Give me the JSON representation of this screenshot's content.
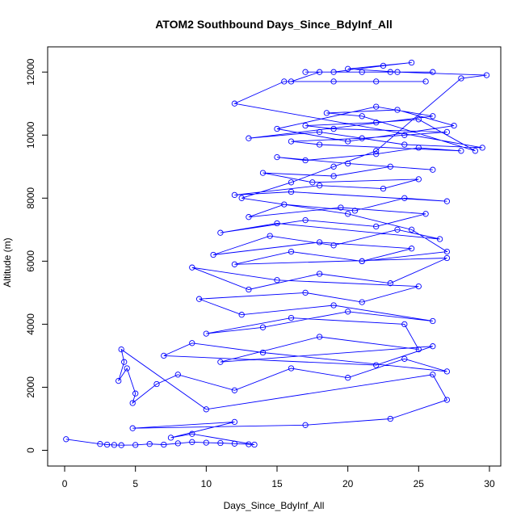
{
  "chart_data": {
    "type": "line",
    "title": "ATOM2 Southbound Days_Since_BdyInf_All",
    "xlabel": "Days_Since_BdyInf_All",
    "ylabel": "Altitude (m)",
    "xlim": [
      -1.2,
      30.8
    ],
    "ylim": [
      -500,
      12800
    ],
    "x_ticks": [
      0,
      5,
      10,
      15,
      20,
      25,
      30
    ],
    "y_ticks": [
      0,
      2000,
      4000,
      6000,
      8000,
      10000,
      12000
    ],
    "grid": false,
    "legend": "none",
    "series": [
      {
        "color": "#0000ff",
        "marker": "open-circle",
        "x": [
          0.1,
          2.5,
          3.0,
          3.5,
          4.0,
          5.0,
          6.0,
          7.0,
          8.0,
          9.0,
          10.0,
          11.0,
          12.0,
          13.0,
          13.4,
          9.0,
          7.5,
          12.0,
          4.8,
          17.0,
          23.0,
          27.0,
          26.0,
          10.0,
          4.0,
          4.2,
          3.8,
          4.4,
          5.0,
          4.8,
          6.5,
          8.0,
          12.0,
          16.0,
          20.0,
          24.0,
          27.0,
          14.0,
          9.0,
          7.0,
          22.0,
          26.0,
          11.0,
          18.0,
          25.0,
          24.0,
          16.0,
          10.0,
          14.0,
          20.0,
          26.0,
          19.0,
          12.5,
          9.5,
          17.0,
          21.0,
          25.0,
          15.0,
          9.0,
          13.0,
          18.0,
          23.0,
          27.0,
          12.0,
          16.0,
          21.0,
          24.5,
          18.0,
          10.5,
          14.5,
          19.0,
          23.5,
          26.5,
          15.0,
          11.0,
          17.0,
          22.0,
          25.5,
          19.5,
          13.0,
          15.5,
          20.5,
          24.0,
          27.0,
          16.0,
          12.0,
          18.0,
          22.5,
          25.0,
          17.5,
          14.0,
          19.0,
          23.0,
          26.0,
          20.0,
          15.0,
          17.0,
          22.0,
          25.0,
          28.0,
          18.0,
          16.0,
          21.0,
          24.0,
          27.0,
          19.0,
          17.0,
          22.0,
          25.0,
          29.0,
          21.0,
          18.5,
          23.5,
          27.5,
          20.0,
          15.0,
          22.0,
          26.0,
          13.0,
          18.0,
          24.0,
          29.5,
          12.0,
          15.5,
          19.0,
          22.0,
          25.5,
          16.0,
          18.0,
          21.0,
          23.0,
          26.0,
          17.0,
          19.0,
          22.5,
          24.5,
          20.0,
          23.5,
          29.8,
          28.0,
          22.0,
          19.0,
          16.0,
          12.5,
          20.0,
          24.5,
          27.0,
          21.0
        ],
        "y": [
          350,
          200,
          180,
          170,
          160,
          170,
          200,
          180,
          220,
          260,
          240,
          230,
          210,
          190,
          180,
          520,
          400,
          900,
          700,
          800,
          1000,
          1600,
          2400,
          1300,
          3200,
          2800,
          2200,
          2600,
          1800,
          1500,
          2100,
          2400,
          1900,
          2600,
          2300,
          2900,
          2500,
          3100,
          3400,
          3000,
          2700,
          3300,
          2800,
          3600,
          3200,
          4000,
          4200,
          3700,
          3900,
          4400,
          4100,
          4600,
          4300,
          4800,
          5000,
          4700,
          5200,
          5400,
          5800,
          5100,
          5600,
          5300,
          6100,
          5900,
          6300,
          6000,
          6400,
          6600,
          6200,
          6800,
          6500,
          7000,
          6700,
          7200,
          6900,
          7300,
          7100,
          7500,
          7700,
          7400,
          7800,
          7600,
          8000,
          7900,
          8200,
          8100,
          8400,
          8300,
          8600,
          8500,
          8800,
          8700,
          9000,
          8900,
          9100,
          9300,
          9200,
          9400,
          9600,
          9500,
          9700,
          9800,
          9900,
          10000,
          10100,
          10200,
          10300,
          10400,
          10500,
          9500,
          10600,
          10700,
          10800,
          10300,
          9800,
          10200,
          10900,
          10600,
          9900,
          10100,
          9700,
          9600,
          11000,
          11700,
          11700,
          11700,
          11700,
          11700,
          12000,
          12000,
          12000,
          12000,
          12000,
          12000,
          12200,
          12300,
          12100,
          12000,
          11900,
          11800,
          9500,
          9000,
          8500,
          8000,
          7500,
          7000,
          6300,
          6000
        ]
      }
    ]
  }
}
